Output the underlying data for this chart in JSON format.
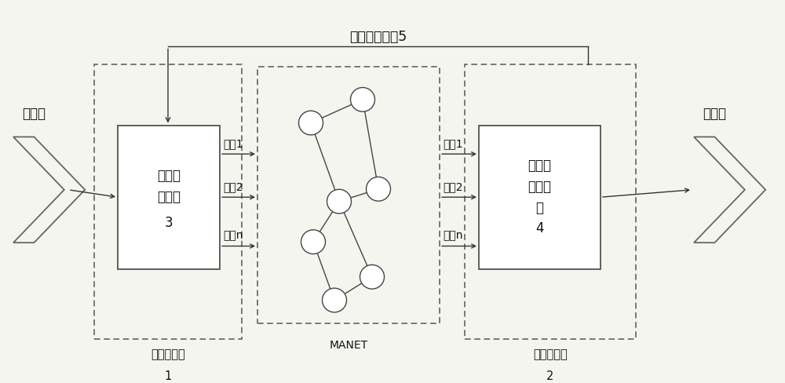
{
  "title": "网络状态反馈5",
  "manet_label": "MANET",
  "bg_color": "#f5f5f0",
  "line_color": "#333333",
  "text_color": "#111111",
  "box1_lines": [
    "实时流",
    "量控制",
    "3"
  ],
  "box1_outer_line1": "数据发送端",
  "box1_outer_line2": "1",
  "box2_lines": [
    "数据重",
    "排与缓",
    "存",
    "4"
  ],
  "box2_outer_line1": "数据接收端",
  "box2_outer_line2": "2",
  "video_left": "视频流",
  "video_right": "视频流",
  "paths_left": [
    "路径1",
    "路径2",
    "路径n"
  ],
  "paths_right": [
    "路径1",
    "路径2",
    "路径n"
  ],
  "font_size_main": 12,
  "font_size_label": 10.5,
  "font_size_small": 10,
  "fig_w": 10.0,
  "fig_h": 4.88,
  "dpi": 100,
  "xlim": [
    0,
    10
  ],
  "ylim": [
    0,
    4.88
  ]
}
